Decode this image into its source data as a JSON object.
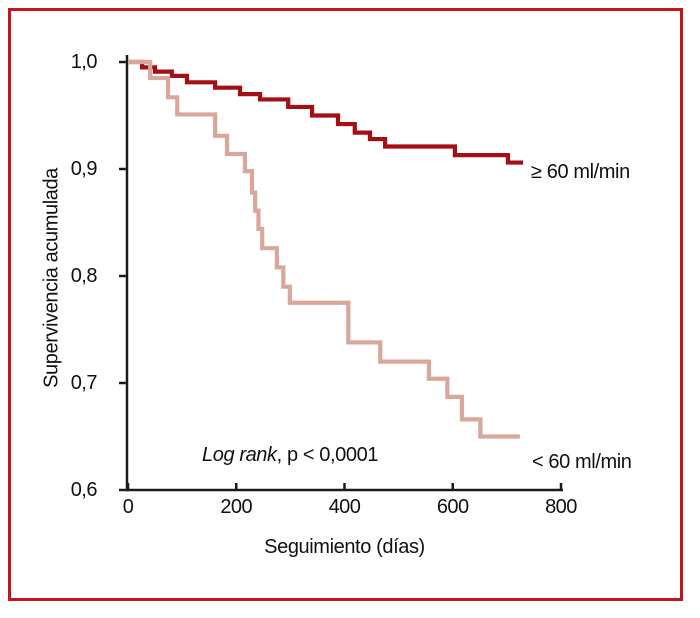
{
  "figure": {
    "border_color": "#c3161b",
    "background_color": "#ffffff",
    "axis_color": "#1a1a1a",
    "text_color": "#111111"
  },
  "chart_data": {
    "type": "line",
    "subtype": "kaplan-meier-step",
    "title": "",
    "xlabel": "Seguimiento (días)",
    "ylabel": "Supervivencia acumulada",
    "xlim": [
      0,
      800
    ],
    "ylim": [
      0.6,
      1.0
    ],
    "grid": false,
    "legend_position": "curve-end-labels",
    "xticks": [
      {
        "value": 0,
        "label": "0"
      },
      {
        "value": 200,
        "label": "200"
      },
      {
        "value": 400,
        "label": "400"
      },
      {
        "value": 600,
        "label": "600"
      },
      {
        "value": 800,
        "label": "800"
      }
    ],
    "yticks": [
      {
        "value": 1.0,
        "label": "1,0"
      },
      {
        "value": 0.9,
        "label": "0,9"
      },
      {
        "value": 0.8,
        "label": "0,8"
      },
      {
        "value": 0.7,
        "label": "0,7"
      },
      {
        "value": 0.6,
        "label": "0,6"
      }
    ],
    "annotation": {
      "italic_part": "Log rank",
      "regular_part": ", p < 0,0001"
    },
    "series": [
      {
        "name": "≥ 60 ml/min",
        "color": "#a30f13",
        "points": [
          [
            0,
            1.0
          ],
          [
            26,
            0.995
          ],
          [
            50,
            0.991
          ],
          [
            81,
            0.987
          ],
          [
            109,
            0.981
          ],
          [
            161,
            0.976
          ],
          [
            207,
            0.97
          ],
          [
            244,
            0.965
          ],
          [
            296,
            0.958
          ],
          [
            340,
            0.95
          ],
          [
            388,
            0.942
          ],
          [
            419,
            0.934
          ],
          [
            447,
            0.928
          ],
          [
            475,
            0.921
          ],
          [
            604,
            0.913
          ],
          [
            702,
            0.906
          ],
          [
            730,
            0.906
          ]
        ]
      },
      {
        "name": "< 60 ml/min",
        "color": "#d8a79a",
        "points": [
          [
            0,
            1.0
          ],
          [
            41,
            0.985
          ],
          [
            74,
            0.967
          ],
          [
            91,
            0.951
          ],
          [
            161,
            0.931
          ],
          [
            183,
            0.914
          ],
          [
            216,
            0.898
          ],
          [
            229,
            0.878
          ],
          [
            235,
            0.861
          ],
          [
            241,
            0.844
          ],
          [
            248,
            0.826
          ],
          [
            275,
            0.808
          ],
          [
            287,
            0.79
          ],
          [
            299,
            0.775
          ],
          [
            407,
            0.738
          ],
          [
            466,
            0.72
          ],
          [
            556,
            0.704
          ],
          [
            590,
            0.687
          ],
          [
            617,
            0.666
          ],
          [
            651,
            0.65
          ],
          [
            724,
            0.65
          ]
        ]
      }
    ]
  }
}
